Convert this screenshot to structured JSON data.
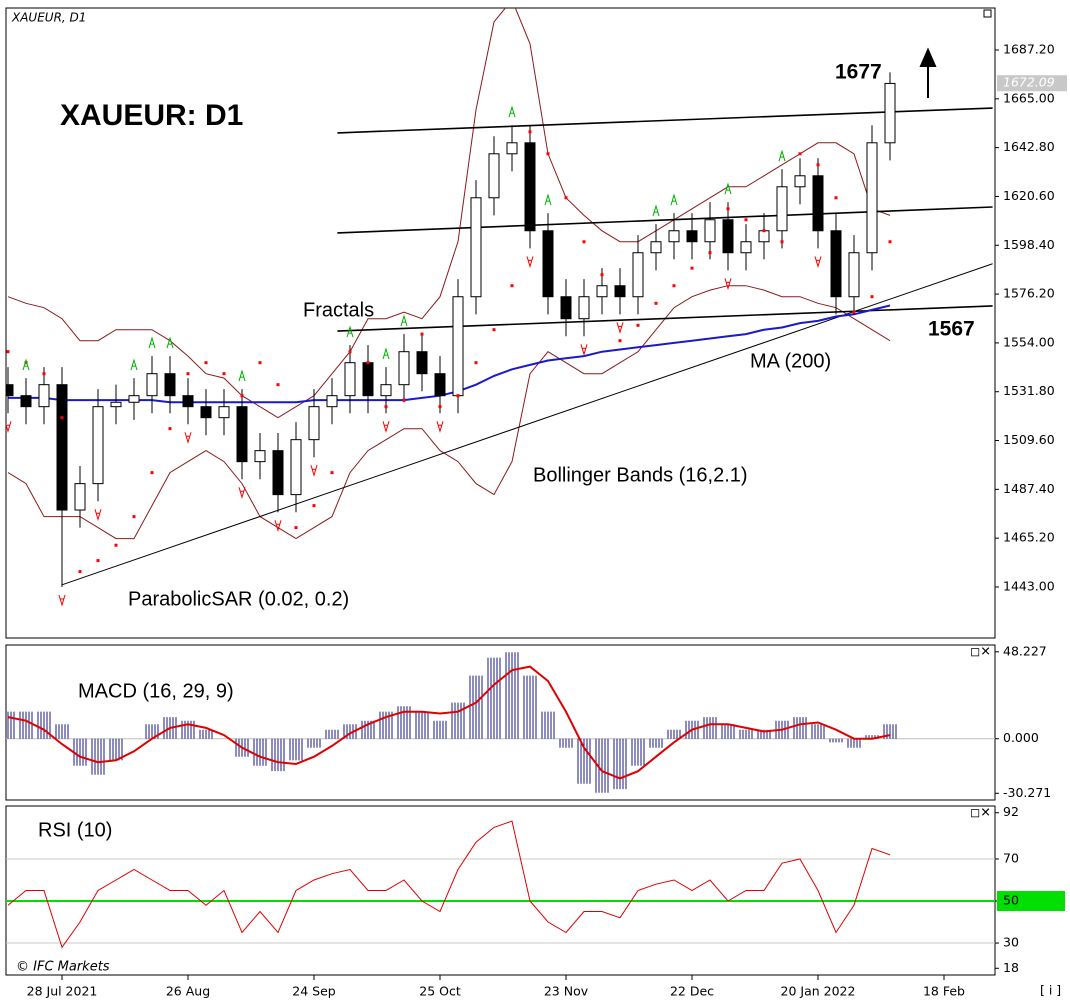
{
  "window_title": "XAUEUR, D1",
  "footer": "© IFC Markets",
  "info_button": "[ i ]",
  "chart_data": [
    {
      "type": "candlestick",
      "title": "XAUEUR: D1",
      "categories": [
        null,
        null,
        null,
        "28 Jul 2021",
        null,
        null,
        null,
        null,
        null,
        null,
        "26 Aug",
        null,
        null,
        null,
        null,
        null,
        null,
        "24 Sep",
        null,
        null,
        null,
        null,
        null,
        null,
        "25 Oct",
        null,
        null,
        null,
        null,
        null,
        null,
        "23 Nov",
        null,
        null,
        null,
        null,
        null,
        null,
        "22 Dec",
        null,
        null,
        null,
        null,
        null,
        null,
        "20 Jan 2022",
        null,
        null,
        null,
        null,
        null,
        null,
        "18 Feb",
        null,
        null
      ],
      "open": [
        1535,
        1530,
        1525,
        1535,
        1478,
        1490,
        1525,
        1527,
        1530,
        1540,
        1530,
        1525,
        1520,
        1525,
        1500,
        1505,
        1485,
        1510,
        1525,
        1530,
        1545,
        1530,
        1535,
        1550,
        1540,
        1530,
        1575,
        1620,
        1640,
        1645,
        1605,
        1575,
        1565,
        1575,
        1580,
        1575,
        1595,
        1600,
        1605,
        1600,
        1610,
        1595,
        1600,
        1605,
        1625,
        1630,
        1605,
        1575,
        1595,
        1645,
        null,
        null,
        null,
        null,
        null
      ],
      "high": [
        1543,
        1538,
        1543,
        1543,
        1498,
        1533,
        1535,
        1538,
        1548,
        1548,
        1538,
        1533,
        1533,
        1533,
        1513,
        1513,
        1518,
        1533,
        1538,
        1553,
        1553,
        1543,
        1558,
        1558,
        1548,
        1583,
        1628,
        1648,
        1653,
        1653,
        1613,
        1583,
        1583,
        1588,
        1588,
        1603,
        1608,
        1613,
        1613,
        1618,
        1618,
        1608,
        1613,
        1633,
        1638,
        1638,
        1613,
        1603,
        1653,
        1677,
        null,
        null,
        null,
        null,
        null
      ],
      "low": [
        1522,
        1517,
        1517,
        1443,
        1470,
        1482,
        1517,
        1519,
        1522,
        1522,
        1517,
        1512,
        1512,
        1492,
        1492,
        1477,
        1477,
        1502,
        1517,
        1522,
        1522,
        1522,
        1527,
        1532,
        1522,
        1522,
        1567,
        1612,
        1632,
        1597,
        1567,
        1557,
        1557,
        1567,
        1567,
        1567,
        1587,
        1592,
        1592,
        1592,
        1587,
        1587,
        1592,
        1597,
        1617,
        1597,
        1567,
        1567,
        1587,
        1637,
        null,
        null,
        null,
        null,
        null
      ],
      "close": [
        1530,
        1525,
        1535,
        1478,
        1490,
        1525,
        1527,
        1530,
        1540,
        1530,
        1525,
        1520,
        1525,
        1500,
        1505,
        1485,
        1510,
        1525,
        1530,
        1545,
        1530,
        1535,
        1550,
        1540,
        1530,
        1575,
        1620,
        1640,
        1645,
        1605,
        1575,
        1565,
        1575,
        1580,
        1575,
        1595,
        1600,
        1605,
        1600,
        1610,
        1595,
        1600,
        1605,
        1625,
        1630,
        1605,
        1575,
        1595,
        1645,
        1672,
        null,
        null,
        null,
        null,
        null
      ],
      "up_color": "#ffffff",
      "down_color": "#000000",
      "ylim": [
        1419.8,
        1706.3
      ],
      "yticks": [
        {
          "value": 1687.2,
          "label": "1687.20"
        },
        {
          "value": 1665,
          "label": "1665.00"
        },
        {
          "value": 1642.8,
          "label": "1642.80"
        },
        {
          "value": 1620.6,
          "label": "1620.60"
        },
        {
          "value": 1598.4,
          "label": "1598.40"
        },
        {
          "value": 1576.2,
          "label": "1576.20"
        },
        {
          "value": 1554,
          "label": "1554.00"
        },
        {
          "value": 1531.8,
          "label": "1531.80"
        },
        {
          "value": 1509.6,
          "label": "1509.60"
        },
        {
          "value": 1487.4,
          "label": "1487.40"
        },
        {
          "value": 1465.2,
          "label": "1465.20"
        },
        {
          "value": 1443,
          "label": "1443.00"
        }
      ],
      "last_price": {
        "value": 1672.09,
        "label": "1672.09"
      },
      "annotations": [
        "1677",
        "1567"
      ],
      "ma": {
        "name": "MA (200)",
        "color": "#1a1acc",
        "values": [
          1529,
          1529,
          1529,
          1528,
          1528,
          1528,
          1528,
          1528,
          1528,
          1527,
          1527,
          1527,
          1527,
          1527,
          1527,
          1527,
          1527,
          1528,
          1528,
          1528,
          1528,
          1528,
          1528,
          1529,
          1530,
          1532,
          1535,
          1539,
          1542,
          1544,
          1546,
          1547,
          1548,
          1550,
          1551,
          1552,
          1553,
          1554,
          1555,
          1556,
          1557,
          1558,
          1560,
          1561,
          1563,
          1564,
          1566,
          1567,
          1569,
          1571,
          null,
          null,
          null,
          null,
          null
        ]
      },
      "bollinger": {
        "name": "Bollinger Bands (16,2.1)",
        "color": "#8b1a1a",
        "upper": [
          1575,
          1572,
          1570,
          1565,
          1555,
          1555,
          1560,
          1560,
          1560,
          1555,
          1548,
          1540,
          1538,
          1530,
          1525,
          1520,
          1525,
          1530,
          1540,
          1550,
          1565,
          1565,
          1568,
          1565,
          1575,
          1600,
          1660,
          1700,
          1710,
          1690,
          1640,
          1620,
          1612,
          1605,
          1600,
          1600,
          1605,
          1610,
          1615,
          1620,
          1625,
          1625,
          1630,
          1635,
          1640,
          1645,
          1645,
          1640,
          1615,
          1612,
          null,
          null,
          null,
          null,
          null
        ],
        "lower": [
          1495,
          1490,
          1475,
          1475,
          1475,
          1470,
          1465,
          1465,
          1480,
          1495,
          1500,
          1505,
          1500,
          1490,
          1475,
          1470,
          1465,
          1470,
          1475,
          1495,
          1505,
          1510,
          1515,
          1515,
          1505,
          1500,
          1490,
          1485,
          1500,
          1540,
          1550,
          1545,
          1540,
          1540,
          1545,
          1550,
          1560,
          1570,
          1575,
          1578,
          1580,
          1580,
          1578,
          1575,
          1575,
          1572,
          1570,
          1565,
          1560,
          1555,
          null,
          null,
          null,
          null,
          null
        ]
      },
      "sar": {
        "name": "ParabolicSAR (0.02, 0.2)",
        "color": "#ff0000",
        "values": [
          1550,
          1545,
          1540,
          1520,
          1450,
          1455,
          1462,
          1475,
          1495,
          1515,
          1540,
          1545,
          1540,
          1530,
          1545,
          1535,
          1470,
          1480,
          1495,
          1550,
          1545,
          1525,
          1528,
          1558,
          1525,
          1530,
          1545,
          1560,
          1580,
          1650,
          1640,
          1620,
          1600,
          1585,
          1555,
          1562,
          1572,
          1580,
          1588,
          1595,
          1615,
          1610,
          1605,
          1600,
          1640,
          1635,
          1620,
          1568,
          1575,
          1600,
          null,
          null,
          null,
          null,
          null
        ]
      },
      "fractals": {
        "name": "Fractals",
        "up_color": "#00b000",
        "down_color": "#ff0000",
        "up": [
          null,
          1538,
          null,
          null,
          null,
          null,
          null,
          1538,
          1548,
          1548,
          null,
          null,
          null,
          1533,
          null,
          null,
          null,
          null,
          null,
          1553,
          null,
          1543,
          1558,
          null,
          null,
          null,
          null,
          null,
          1653,
          null,
          1613,
          null,
          null,
          null,
          null,
          null,
          1608,
          1613,
          null,
          null,
          1618,
          null,
          null,
          1633,
          null,
          null,
          null,
          null,
          null,
          null,
          null,
          null,
          null,
          null,
          null
        ],
        "down": [
          1522,
          null,
          null,
          1443,
          null,
          1482,
          null,
          null,
          null,
          null,
          1517,
          null,
          null,
          1492,
          null,
          1477,
          null,
          1502,
          null,
          null,
          null,
          1522,
          null,
          null,
          1522,
          null,
          null,
          null,
          null,
          1597,
          null,
          null,
          1557,
          null,
          1567,
          null,
          null,
          null,
          null,
          null,
          1587,
          null,
          null,
          null,
          null,
          1597,
          null,
          null,
          null,
          null,
          null,
          null,
          null,
          null,
          null
        ]
      },
      "trendlines": [
        {
          "x": [
            3,
            54.7
          ],
          "y": [
            1444,
            1590
          ]
        },
        {
          "x": [
            18.3,
            54.7
          ],
          "y": [
            1649.5,
            1660.8
          ]
        },
        {
          "x": [
            18.3,
            54.7
          ],
          "y": [
            1604,
            1615.8
          ]
        },
        {
          "x": [
            18.3,
            54.7
          ],
          "y": [
            1559.4,
            1570.8
          ]
        }
      ]
    },
    {
      "type": "macd",
      "title": "MACD (16, 29, 9)",
      "histogram": [
        15,
        15,
        15,
        8,
        -15,
        -20,
        -12,
        0,
        8,
        12,
        10,
        5,
        0,
        -10,
        -15,
        -18,
        -12,
        -5,
        5,
        8,
        10,
        15,
        18,
        15,
        10,
        20,
        35,
        45,
        48,
        35,
        15,
        -5,
        -25,
        -30,
        -28,
        -15,
        -5,
        5,
        10,
        12,
        8,
        5,
        5,
        10,
        12,
        8,
        -2,
        -5,
        2,
        8,
        null,
        null,
        null,
        null,
        null
      ],
      "signal": [
        12,
        10,
        5,
        -3,
        -10,
        -13,
        -12,
        -7,
        0,
        6,
        8,
        6,
        2,
        -5,
        -10,
        -13,
        -14,
        -10,
        -4,
        3,
        8,
        12,
        15,
        15,
        14,
        15,
        20,
        30,
        38,
        40,
        32,
        15,
        -5,
        -18,
        -22,
        -18,
        -10,
        -2,
        5,
        8,
        8,
        6,
        4,
        5,
        8,
        9,
        5,
        0,
        0,
        2,
        null,
        null,
        null,
        null,
        null
      ],
      "histogram_color": "#1a1a80",
      "signal_color": "#e00000",
      "ylim": [
        -34,
        52
      ],
      "yticks": [
        {
          "value": 48.227,
          "label": "48.227"
        },
        {
          "value": 0,
          "label": "0.000"
        },
        {
          "value": -30.271,
          "label": "-30.271"
        }
      ]
    },
    {
      "type": "line",
      "title": "RSI (10)",
      "values": [
        48,
        55,
        55,
        28,
        40,
        55,
        60,
        65,
        60,
        55,
        55,
        48,
        55,
        35,
        45,
        35,
        55,
        60,
        63,
        65,
        55,
        55,
        60,
        50,
        45,
        65,
        78,
        85,
        88,
        50,
        40,
        35,
        45,
        45,
        42,
        55,
        58,
        60,
        55,
        60,
        50,
        55,
        55,
        68,
        70,
        55,
        35,
        48,
        75,
        72,
        null,
        null,
        null,
        null,
        null
      ],
      "color": "#e00000",
      "ylim": [
        14.8,
        95.2
      ],
      "yticks": [
        92,
        70,
        50,
        30,
        18
      ],
      "levels": [
        {
          "value": 70,
          "color": "#c8c8c8"
        },
        {
          "value": 50,
          "color": "#00e000",
          "highlight": true
        },
        {
          "value": 30,
          "color": "#c8c8c8"
        }
      ]
    }
  ]
}
